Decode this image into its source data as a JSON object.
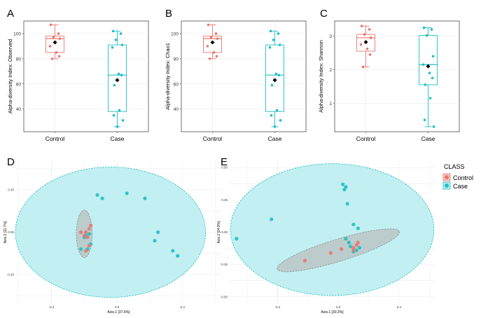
{
  "colors": {
    "control": "#e8776f",
    "case": "#1fbfc3",
    "ellipse_case_fill": "#bfeef0",
    "ellipse_control_fill": "#b9b9b9",
    "grid": "#ebebeb",
    "axis_text": "#333333",
    "mean_marker": "#000000"
  },
  "legend": {
    "title": "CLASS",
    "entries": [
      {
        "label": "Control",
        "color": "#e8776f"
      },
      {
        "label": "Case",
        "color": "#1fbfc3"
      }
    ]
  },
  "chart_data": [
    {
      "panel": "A",
      "type": "box",
      "ylabel": "Alpha-diversity Index: Observed",
      "categories": [
        "Control",
        "Case"
      ],
      "ylim": [
        22,
        110
      ],
      "yticks": [
        40,
        60,
        80,
        100
      ],
      "boxes": [
        {
          "name": "Control",
          "q1": 85,
          "median": 96,
          "q3": 98,
          "whisker_low": 80,
          "whisker_high": 107,
          "mean": 93,
          "points": [
            107,
            100,
            97,
            96,
            90,
            85,
            82,
            80
          ]
        },
        {
          "name": "Case",
          "q1": 38,
          "median": 67,
          "q3": 91,
          "whisker_low": 26,
          "whisker_high": 102,
          "mean": 63,
          "points": [
            102,
            100,
            95,
            91,
            89,
            68,
            67,
            59,
            39,
            35,
            31,
            26
          ]
        }
      ]
    },
    {
      "panel": "B",
      "type": "box",
      "ylabel": "Alpha-diversity Index: Chao1",
      "categories": [
        "Control",
        "Case"
      ],
      "ylim": [
        22,
        110
      ],
      "yticks": [
        40,
        60,
        80,
        100
      ],
      "boxes": [
        {
          "name": "Control",
          "q1": 85,
          "median": 96,
          "q3": 98,
          "whisker_low": 80,
          "whisker_high": 107,
          "mean": 93,
          "points": [
            107,
            100,
            97,
            96,
            90,
            85,
            82,
            80
          ]
        },
        {
          "name": "Case",
          "q1": 38,
          "median": 67,
          "q3": 91,
          "whisker_low": 26,
          "whisker_high": 102,
          "mean": 63,
          "points": [
            102,
            100,
            95,
            91,
            89,
            68,
            67,
            59,
            39,
            35,
            31,
            26
          ]
        }
      ]
    },
    {
      "panel": "C",
      "type": "box",
      "ylabel": "Alpha-diversity Index: Shannon",
      "categories": [
        "Control",
        "Case"
      ],
      "ylim": [
        0.15,
        3.45
      ],
      "yticks": [
        1,
        2,
        3
      ],
      "boxes": [
        {
          "name": "Control",
          "q1": 2.55,
          "median": 2.95,
          "q3": 3.05,
          "whisker_low": 2.08,
          "whisker_high": 3.3,
          "mean": 2.82,
          "points": [
            3.3,
            3.2,
            3.05,
            2.95,
            2.75,
            2.62,
            2.45,
            2.08
          ]
        },
        {
          "name": "Case",
          "q1": 1.55,
          "median": 2.15,
          "q3": 3.02,
          "whisker_low": 0.3,
          "whisker_high": 3.25,
          "mean": 2.1,
          "points": [
            3.25,
            3.2,
            3.02,
            2.4,
            2.15,
            1.9,
            1.75,
            1.55,
            1.15,
            0.5,
            0.3
          ]
        }
      ]
    },
    {
      "panel": "D",
      "type": "scatter",
      "xlabel": "Axis.1   [37.6%]",
      "ylabel": "Axis.2   [11.7%]",
      "xlim": [
        -0.62,
        0.64
      ],
      "ylim": [
        -0.42,
        0.42
      ],
      "xticks": [
        -0.4,
        0.0,
        0.4
      ],
      "yticks": [
        -0.25,
        0.0,
        0.25
      ],
      "xtick_labels": [
        "-0.4",
        "0.0",
        "0.4"
      ],
      "ytick_labels": [
        "-0.25",
        "0.00",
        "0.25"
      ],
      "ellipses": [
        {
          "group": "Case",
          "cx": -0.04,
          "cy": 0.0,
          "rx": 0.58,
          "ry": 0.385,
          "angle": 0
        },
        {
          "group": "Control",
          "cx": -0.2,
          "cy": -0.01,
          "rx": 0.048,
          "ry": 0.14,
          "angle": 0
        }
      ],
      "series": [
        {
          "name": "Case",
          "points": [
            [
              -0.12,
              0.22
            ],
            [
              -0.09,
              0.2
            ],
            [
              0.06,
              0.23
            ],
            [
              0.17,
              0.2
            ],
            [
              0.25,
              0.0
            ],
            [
              0.23,
              -0.05
            ],
            [
              0.34,
              -0.11
            ],
            [
              0.37,
              -0.14
            ],
            [
              -0.22,
              -0.1
            ],
            [
              -0.18,
              -0.1
            ],
            [
              -0.16,
              -0.07
            ],
            [
              -0.2,
              -0.03
            ],
            [
              -0.17,
              -0.01
            ],
            [
              -0.19,
              -0.02
            ]
          ]
        },
        {
          "name": "Control",
          "points": [
            [
              -0.22,
              0.0
            ],
            [
              -0.19,
              0.0
            ],
            [
              -0.16,
              0.04
            ],
            [
              -0.17,
              0.02
            ],
            [
              -0.2,
              -0.02
            ],
            [
              -0.18,
              -0.03
            ],
            [
              -0.19,
              -0.11
            ],
            [
              -0.17,
              -0.08
            ]
          ]
        }
      ]
    },
    {
      "panel": "E",
      "type": "scatter",
      "xlabel": "Axis.1   [30.2%]",
      "ylabel": "Axis.2   [24.9%]",
      "xlim": [
        -0.72,
        0.64
      ],
      "ylim": [
        -0.55,
        0.55
      ],
      "xticks": [
        -0.4,
        0.0,
        0.4
      ],
      "yticks": [
        -0.5,
        -0.25,
        0.0,
        0.25,
        0.5
      ],
      "xtick_labels": [
        "-0.4",
        "0.0",
        "0.4"
      ],
      "ytick_labels": [
        "-0.50",
        "-0.25",
        "0.00",
        "0.25",
        "0.50"
      ],
      "ellipses": [
        {
          "group": "Case",
          "cx": -0.04,
          "cy": 0.02,
          "rx": 0.67,
          "ry": 0.51,
          "angle": 0
        },
        {
          "group": "Control",
          "cx": 0.0,
          "cy": -0.14,
          "rx": 0.42,
          "ry": 0.085,
          "angle": -17
        }
      ],
      "series": [
        {
          "name": "Case",
          "points": [
            [
              -0.67,
              -0.05
            ],
            [
              -0.44,
              0.1
            ],
            [
              0.03,
              0.37
            ],
            [
              0.04,
              0.33
            ],
            [
              0.05,
              0.35
            ],
            [
              0.06,
              0.22
            ],
            [
              0.1,
              0.06
            ],
            [
              0.13,
              0.03
            ],
            [
              0.05,
              -0.05
            ],
            [
              0.07,
              -0.08
            ],
            [
              0.08,
              -0.11
            ],
            [
              0.12,
              -0.14
            ],
            [
              0.1,
              -0.15
            ],
            [
              0.14,
              -0.12
            ]
          ]
        },
        {
          "name": "Control",
          "points": [
            [
              -0.22,
              -0.22
            ],
            [
              -0.05,
              -0.16
            ],
            [
              0.02,
              -0.13
            ],
            [
              0.1,
              -0.14
            ],
            [
              0.12,
              -0.1
            ],
            [
              0.13,
              -0.08
            ],
            [
              0.1,
              -0.12
            ]
          ]
        }
      ]
    }
  ]
}
